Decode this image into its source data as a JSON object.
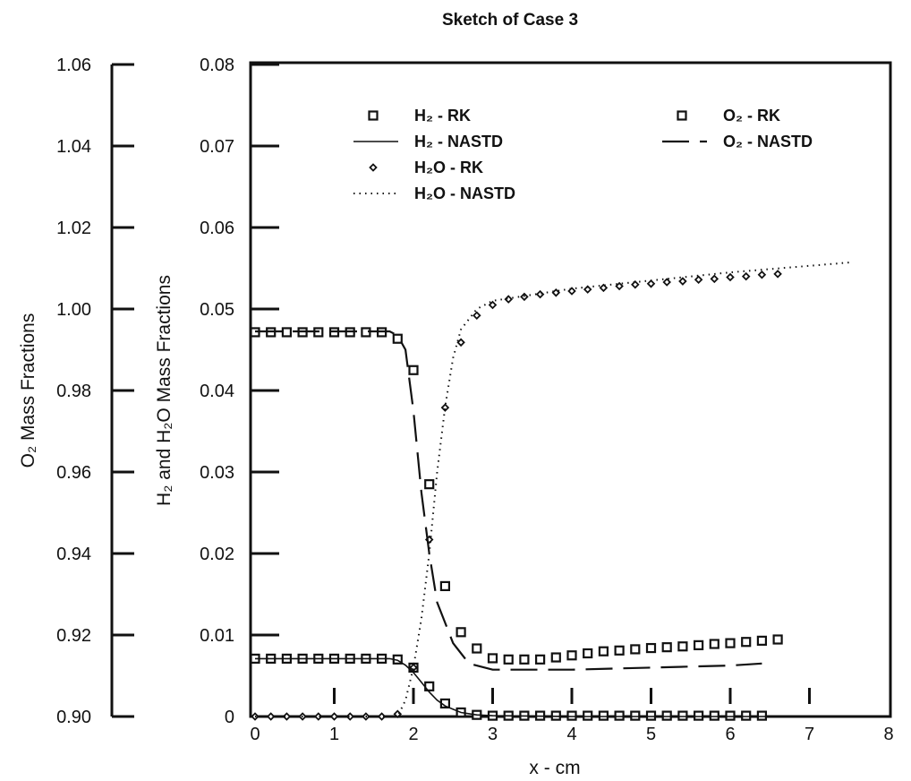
{
  "chart_data": {
    "type": "line",
    "title": "Sketch of Case 3",
    "xlabel": "x - cm",
    "ylabel_left": "O₂ Mass Fractions",
    "ylabel_right": "H₂ and H₂O Mass Fractions",
    "xlim": [
      0,
      8
    ],
    "ylim_left": [
      0.9,
      1.06
    ],
    "ylim_right": [
      0,
      0.08
    ],
    "xticks": [
      "0",
      "1",
      "2",
      "3",
      "4",
      "5",
      "6",
      "7",
      "8"
    ],
    "yticks_left": [
      "0.90",
      "0.92",
      "0.94",
      "0.96",
      "0.98",
      "1.00",
      "1.02",
      "1.04",
      "1.06"
    ],
    "yticks_right": [
      "0",
      "0.01",
      "0.02",
      "0.03",
      "0.04",
      "0.05",
      "0.06",
      "0.07",
      "0.08"
    ],
    "grid": false,
    "legend_position": "top",
    "colors": {
      "ink": "#111111",
      "background": "#ffffff"
    },
    "series": [
      {
        "name": "H₂ - RK",
        "style": "open-square",
        "axis": "right",
        "x": [
          0,
          0.2,
          0.4,
          0.6,
          0.8,
          1.0,
          1.2,
          1.4,
          1.6,
          1.8,
          2.0,
          2.2,
          2.4,
          2.6,
          2.8,
          3.0,
          3.2,
          3.4,
          3.6,
          3.8,
          4.0,
          4.2,
          4.4,
          4.6,
          4.8,
          5.0,
          5.2,
          5.4,
          5.6,
          5.8,
          6.0,
          6.2,
          6.4
        ],
        "y": [
          0.0071,
          0.0071,
          0.0071,
          0.0071,
          0.0071,
          0.0071,
          0.0071,
          0.0071,
          0.0071,
          0.007,
          0.006,
          0.0037,
          0.0016,
          0.0005,
          0.0002,
          0.0001,
          0.0001,
          0.0001,
          0.0001,
          0.0001,
          0.0001,
          0.0001,
          0.0001,
          0.0001,
          0.0001,
          0.0001,
          0.0001,
          0.0001,
          0.0001,
          0.0001,
          0.0001,
          0.0001,
          0.0001
        ]
      },
      {
        "name": "H₂ - NASTD",
        "style": "solid",
        "axis": "right",
        "x": [
          0,
          1.7,
          1.8,
          1.9,
          2.0,
          2.1,
          2.2,
          2.3,
          2.4,
          2.6,
          2.8,
          3.0,
          4.0,
          8.0
        ],
        "y": [
          0.0071,
          0.0071,
          0.0069,
          0.0063,
          0.0054,
          0.0042,
          0.003,
          0.002,
          0.0013,
          0.0005,
          0.0002,
          0.0001,
          0,
          0
        ]
      },
      {
        "name": "H₂O - RK",
        "style": "small-diamond",
        "axis": "right",
        "x": [
          0,
          0.2,
          0.4,
          0.6,
          0.8,
          1.0,
          1.2,
          1.4,
          1.6,
          1.8,
          2.0,
          2.2,
          2.4,
          2.6,
          2.8,
          3.0,
          3.2,
          3.4,
          3.6,
          3.8,
          4.0,
          4.2,
          4.4,
          4.6,
          4.8,
          5.0,
          5.2,
          5.4,
          5.6,
          5.8,
          6.0,
          6.2,
          6.4,
          6.6
        ],
        "y": [
          0,
          0,
          0,
          0,
          0,
          0,
          0,
          0,
          0,
          0.0003,
          0.006,
          0.0217,
          0.0379,
          0.0459,
          0.0492,
          0.0505,
          0.0512,
          0.0515,
          0.0518,
          0.052,
          0.0522,
          0.0524,
          0.0526,
          0.0528,
          0.053,
          0.0531,
          0.0533,
          0.0534,
          0.0536,
          0.0537,
          0.0539,
          0.054,
          0.0542,
          0.0543
        ]
      },
      {
        "name": "H₂O - NASTD",
        "style": "dotted",
        "axis": "right",
        "x": [
          0,
          1.8,
          1.9,
          2.0,
          2.1,
          2.2,
          2.3,
          2.4,
          2.5,
          2.6,
          2.8,
          3.0,
          4.0,
          5.0,
          6.0,
          7.0,
          7.5
        ],
        "y": [
          0,
          0,
          0.002,
          0.006,
          0.012,
          0.02,
          0.03,
          0.038,
          0.044,
          0.0475,
          0.05,
          0.051,
          0.0525,
          0.0535,
          0.0545,
          0.0553,
          0.0557
        ]
      },
      {
        "name": "O₂ - RK",
        "style": "open-square",
        "axis": "left",
        "x": [
          0,
          0.2,
          0.4,
          0.6,
          0.8,
          1.0,
          1.2,
          1.4,
          1.6,
          1.8,
          2.0,
          2.2,
          2.4,
          2.6,
          2.8,
          3.0,
          3.2,
          3.4,
          3.6,
          3.8,
          4.0,
          4.2,
          4.4,
          4.6,
          4.8,
          5.0,
          5.2,
          5.4,
          5.6,
          5.8,
          6.0,
          6.2,
          6.4,
          6.6
        ],
        "y": [
          0.9943,
          0.9943,
          0.9943,
          0.9943,
          0.9943,
          0.9943,
          0.9943,
          0.9943,
          0.9943,
          0.9927,
          0.985,
          0.957,
          0.932,
          0.9207,
          0.9167,
          0.9143,
          0.914,
          0.914,
          0.914,
          0.9145,
          0.915,
          0.9155,
          0.916,
          0.9162,
          0.9165,
          0.9168,
          0.917,
          0.9172,
          0.9175,
          0.9178,
          0.918,
          0.9183,
          0.9186,
          0.9189
        ]
      },
      {
        "name": "O₂ - NASTD",
        "style": "dashed",
        "axis": "left",
        "x": [
          0,
          1.7,
          1.8,
          1.9,
          2.0,
          2.1,
          2.2,
          2.3,
          2.5,
          2.7,
          3.0,
          4.0,
          5.0,
          6.0,
          6.4
        ],
        "y": [
          0.9945,
          0.9945,
          0.9935,
          0.99,
          0.975,
          0.955,
          0.94,
          0.928,
          0.918,
          0.913,
          0.9115,
          0.9115,
          0.912,
          0.9125,
          0.913
        ]
      }
    ]
  }
}
